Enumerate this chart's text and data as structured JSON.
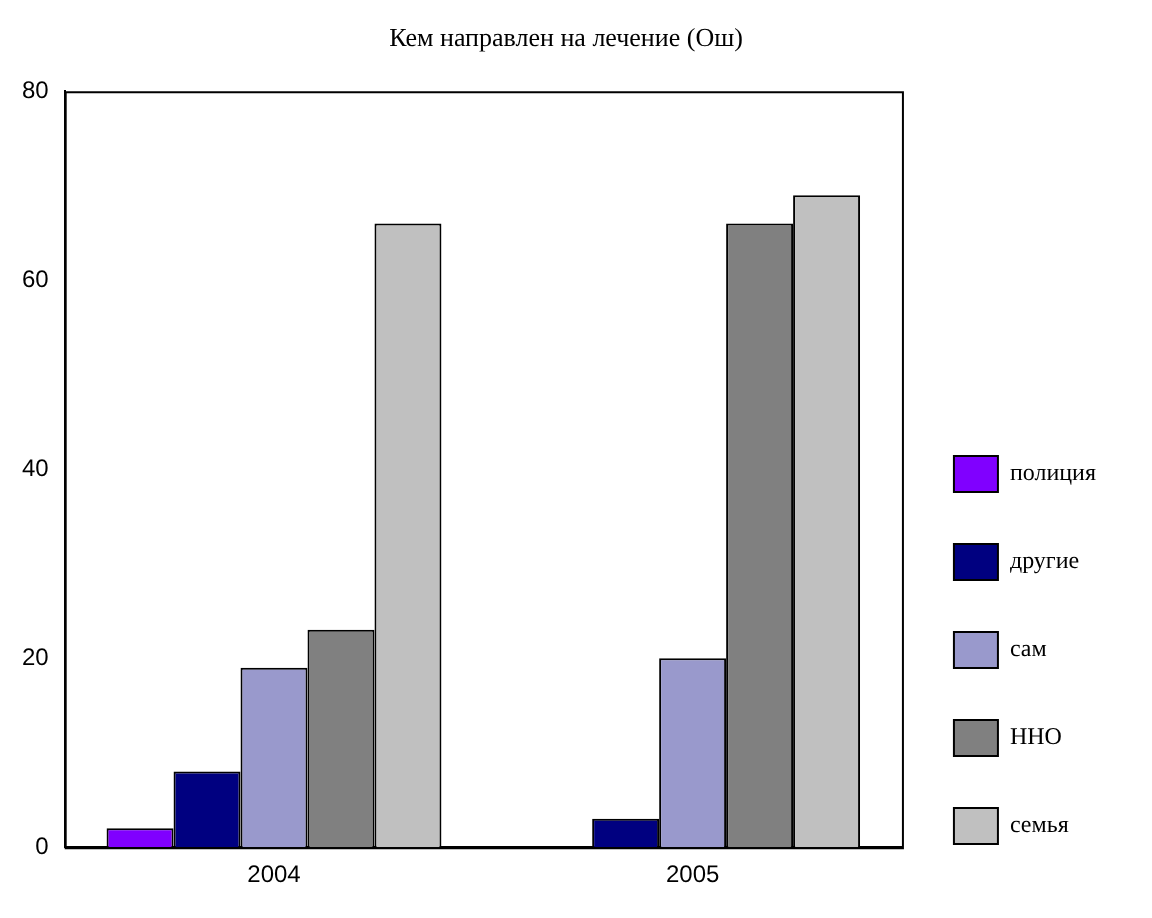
{
  "chart_data": {
    "type": "bar",
    "title": "Кем направлен на лечение (Ош)",
    "categories": [
      "2004",
      "2005"
    ],
    "series": [
      {
        "name": "полиция",
        "color": "#8000ff",
        "values": [
          2,
          0
        ]
      },
      {
        "name": "другие",
        "color": "#000080",
        "values": [
          8,
          3
        ]
      },
      {
        "name": "сам",
        "color": "#9999cc",
        "values": [
          19,
          20
        ]
      },
      {
        "name": "ННО",
        "color": "#808080",
        "values": [
          23,
          66
        ]
      },
      {
        "name": "семья",
        "color": "#c0c0c0",
        "values": [
          66,
          69
        ]
      }
    ],
    "ylim": [
      0,
      80
    ],
    "yticks": [
      0,
      20,
      40,
      60,
      80
    ],
    "grid": false,
    "legend": "right"
  }
}
